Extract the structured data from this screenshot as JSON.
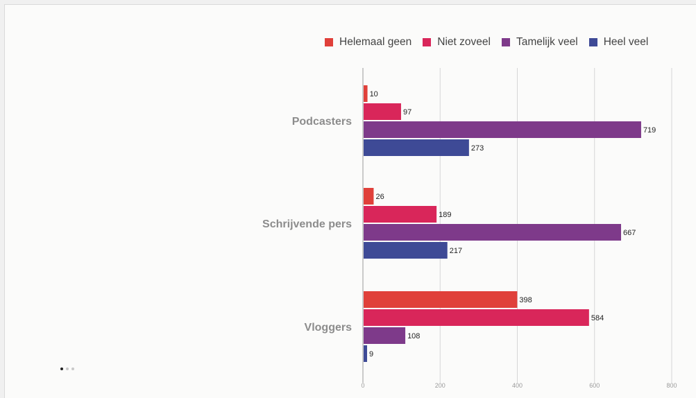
{
  "chart_data": {
    "type": "bar",
    "orientation": "horizontal",
    "categories": [
      "Podcasters",
      "Schrijvende pers",
      "Vloggers"
    ],
    "series": [
      {
        "name": "Helemaal geen",
        "color": "#e0403a",
        "values": [
          10,
          26,
          398
        ]
      },
      {
        "name": "Niet zoveel",
        "color": "#d9265a",
        "values": [
          97,
          189,
          584
        ]
      },
      {
        "name": "Tamelijk veel",
        "color": "#7e3a8a",
        "values": [
          719,
          667,
          108
        ]
      },
      {
        "name": "Heel veel",
        "color": "#3e4a96",
        "values": [
          273,
          217,
          9
        ]
      }
    ],
    "xlim": [
      0,
      800
    ],
    "x_ticks": [
      "0",
      "200",
      "400",
      "600",
      "800"
    ],
    "grid": true,
    "legend_position": "top-right",
    "title": "",
    "xlabel": "",
    "ylabel": ""
  },
  "pager": {
    "count": 3,
    "active_index": 0
  }
}
